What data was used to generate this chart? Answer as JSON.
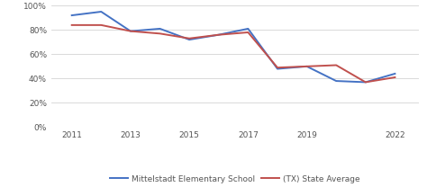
{
  "school_years": [
    2011,
    2012,
    2013,
    2014,
    2015,
    2016,
    2017,
    2018,
    2019,
    2020,
    2021,
    2022
  ],
  "school_values": [
    0.92,
    0.95,
    0.79,
    0.81,
    0.72,
    0.76,
    0.81,
    0.48,
    0.5,
    0.38,
    0.37,
    0.44
  ],
  "state_values": [
    0.84,
    0.84,
    0.79,
    0.77,
    0.73,
    0.76,
    0.78,
    0.49,
    0.5,
    0.51,
    0.37,
    0.41
  ],
  "school_color": "#4472C4",
  "state_color": "#C0504D",
  "school_label": "Mittelstadt Elementary School",
  "state_label": "(TX) State Average",
  "ylim": [
    0,
    1.0
  ],
  "yticks": [
    0,
    0.2,
    0.4,
    0.6,
    0.8,
    1.0
  ],
  "xticks": [
    2011,
    2013,
    2015,
    2017,
    2019,
    2022
  ],
  "background_color": "#ffffff",
  "grid_color": "#d3d3d3",
  "line_width": 1.4,
  "legend_fontsize": 6.5,
  "tick_fontsize": 6.5,
  "tick_color": "#555555"
}
